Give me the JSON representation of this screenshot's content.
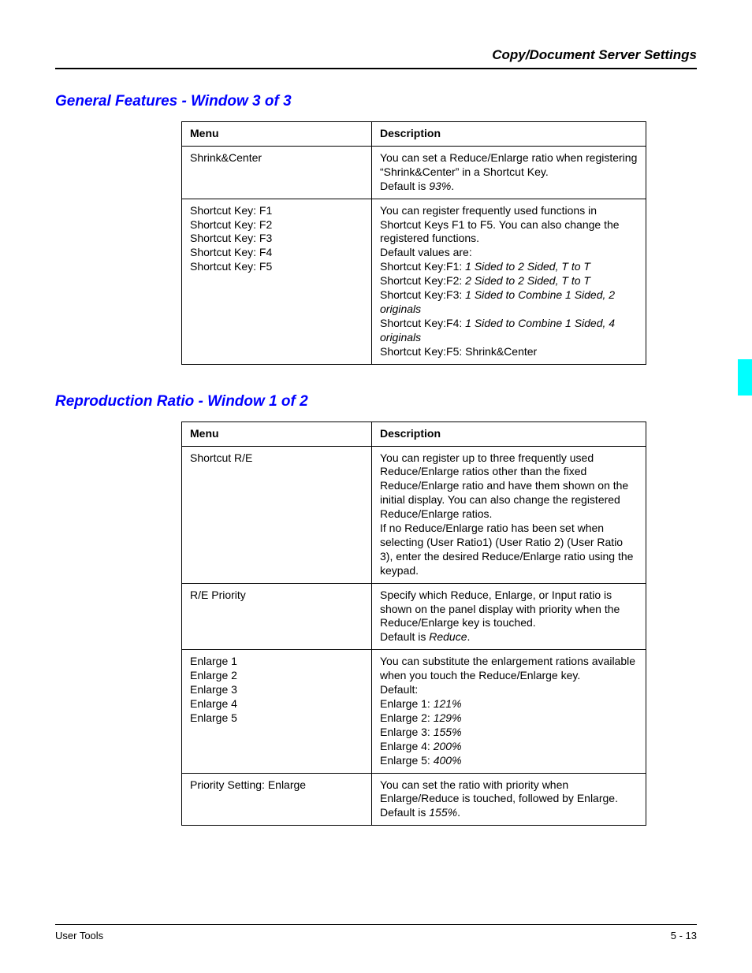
{
  "header": {
    "title": "Copy/Document Server Settings"
  },
  "tab": {
    "color": "#00ffff"
  },
  "sections": [
    {
      "heading": "General Features - Window 3 of 3",
      "columns": [
        "Menu",
        "Description"
      ],
      "rows": [
        {
          "menu": [
            "Shrink&Center"
          ],
          "desc": [
            {
              "t": "You can set a Reduce/Enlarge ratio when registering “Shrink&Center” in a Shortcut Key."
            },
            {
              "t": "Default is ",
              "tail_italic": "93%",
              "tail_after": "."
            }
          ]
        },
        {
          "menu": [
            "Shortcut Key: F1",
            "Shortcut Key: F2",
            "Shortcut Key: F3",
            "Shortcut Key: F4",
            "Shortcut Key: F5"
          ],
          "desc": [
            {
              "t": "You can register frequently used functions in Shortcut Keys F1 to F5. You can also change the registered functions."
            },
            {
              "t": "Default values are:"
            },
            {
              "t": "Shortcut Key:F1: ",
              "tail_italic": "1 Sided to 2 Sided, T to T"
            },
            {
              "t": "Shortcut Key:F2: ",
              "tail_italic": "2 Sided to 2 Sided, T to T"
            },
            {
              "t": "Shortcut Key:F3: ",
              "tail_italic": "1 Sided to Combine 1 Sided, 2 originals"
            },
            {
              "t": "Shortcut Key:F4: ",
              "tail_italic": "1 Sided to Combine 1 Sided, 4 originals"
            },
            {
              "t": "Shortcut Key:F5: Shrink&Center"
            }
          ]
        }
      ]
    },
    {
      "heading": "Reproduction Ratio - Window 1 of 2",
      "columns": [
        "Menu",
        "Description"
      ],
      "rows": [
        {
          "menu": [
            "Shortcut R/E"
          ],
          "desc": [
            {
              "t": "You can register up to three frequently used Reduce/Enlarge ratios other than the fixed Reduce/Enlarge ratio and have them shown on the initial display. You can also change the registered Reduce/Enlarge ratios."
            },
            {
              "t": "If no Reduce/Enlarge ratio has been set when selecting (User Ratio1) (User Ratio 2) (User Ratio 3), enter the desired Reduce/Enlarge ratio using the keypad."
            }
          ]
        },
        {
          "menu": [
            "R/E Priority"
          ],
          "desc": [
            {
              "t": "Specify which Reduce, Enlarge, or Input ratio is shown on the panel display with priority when the Reduce/Enlarge key is touched."
            },
            {
              "t": "Default is ",
              "tail_italic": "Reduce",
              "tail_after": "."
            }
          ]
        },
        {
          "menu": [
            "Enlarge 1",
            "Enlarge 2",
            "Enlarge 3",
            "Enlarge 4",
            "Enlarge 5"
          ],
          "desc": [
            {
              "t": "You can substitute the enlargement rations available when you touch the Reduce/Enlarge key."
            },
            {
              "t": "Default:"
            },
            {
              "t": "Enlarge 1: ",
              "tail_italic": "121%"
            },
            {
              "t": "Enlarge 2: ",
              "tail_italic": "129%"
            },
            {
              "t": "Enlarge 3: ",
              "tail_italic": "155%"
            },
            {
              "t": "Enlarge 4: ",
              "tail_italic": "200%"
            },
            {
              "t": "Enlarge 5: ",
              "tail_italic": "400%"
            }
          ]
        },
        {
          "menu": [
            "Priority Setting: Enlarge"
          ],
          "desc": [
            {
              "t": "You can set the ratio with priority when Enlarge/Reduce is touched, followed by Enlarge."
            },
            {
              "t": "Default is ",
              "tail_italic": "155%",
              "tail_after": "."
            }
          ]
        }
      ]
    }
  ],
  "footer": {
    "left": "User Tools",
    "right": "5 - 13"
  }
}
